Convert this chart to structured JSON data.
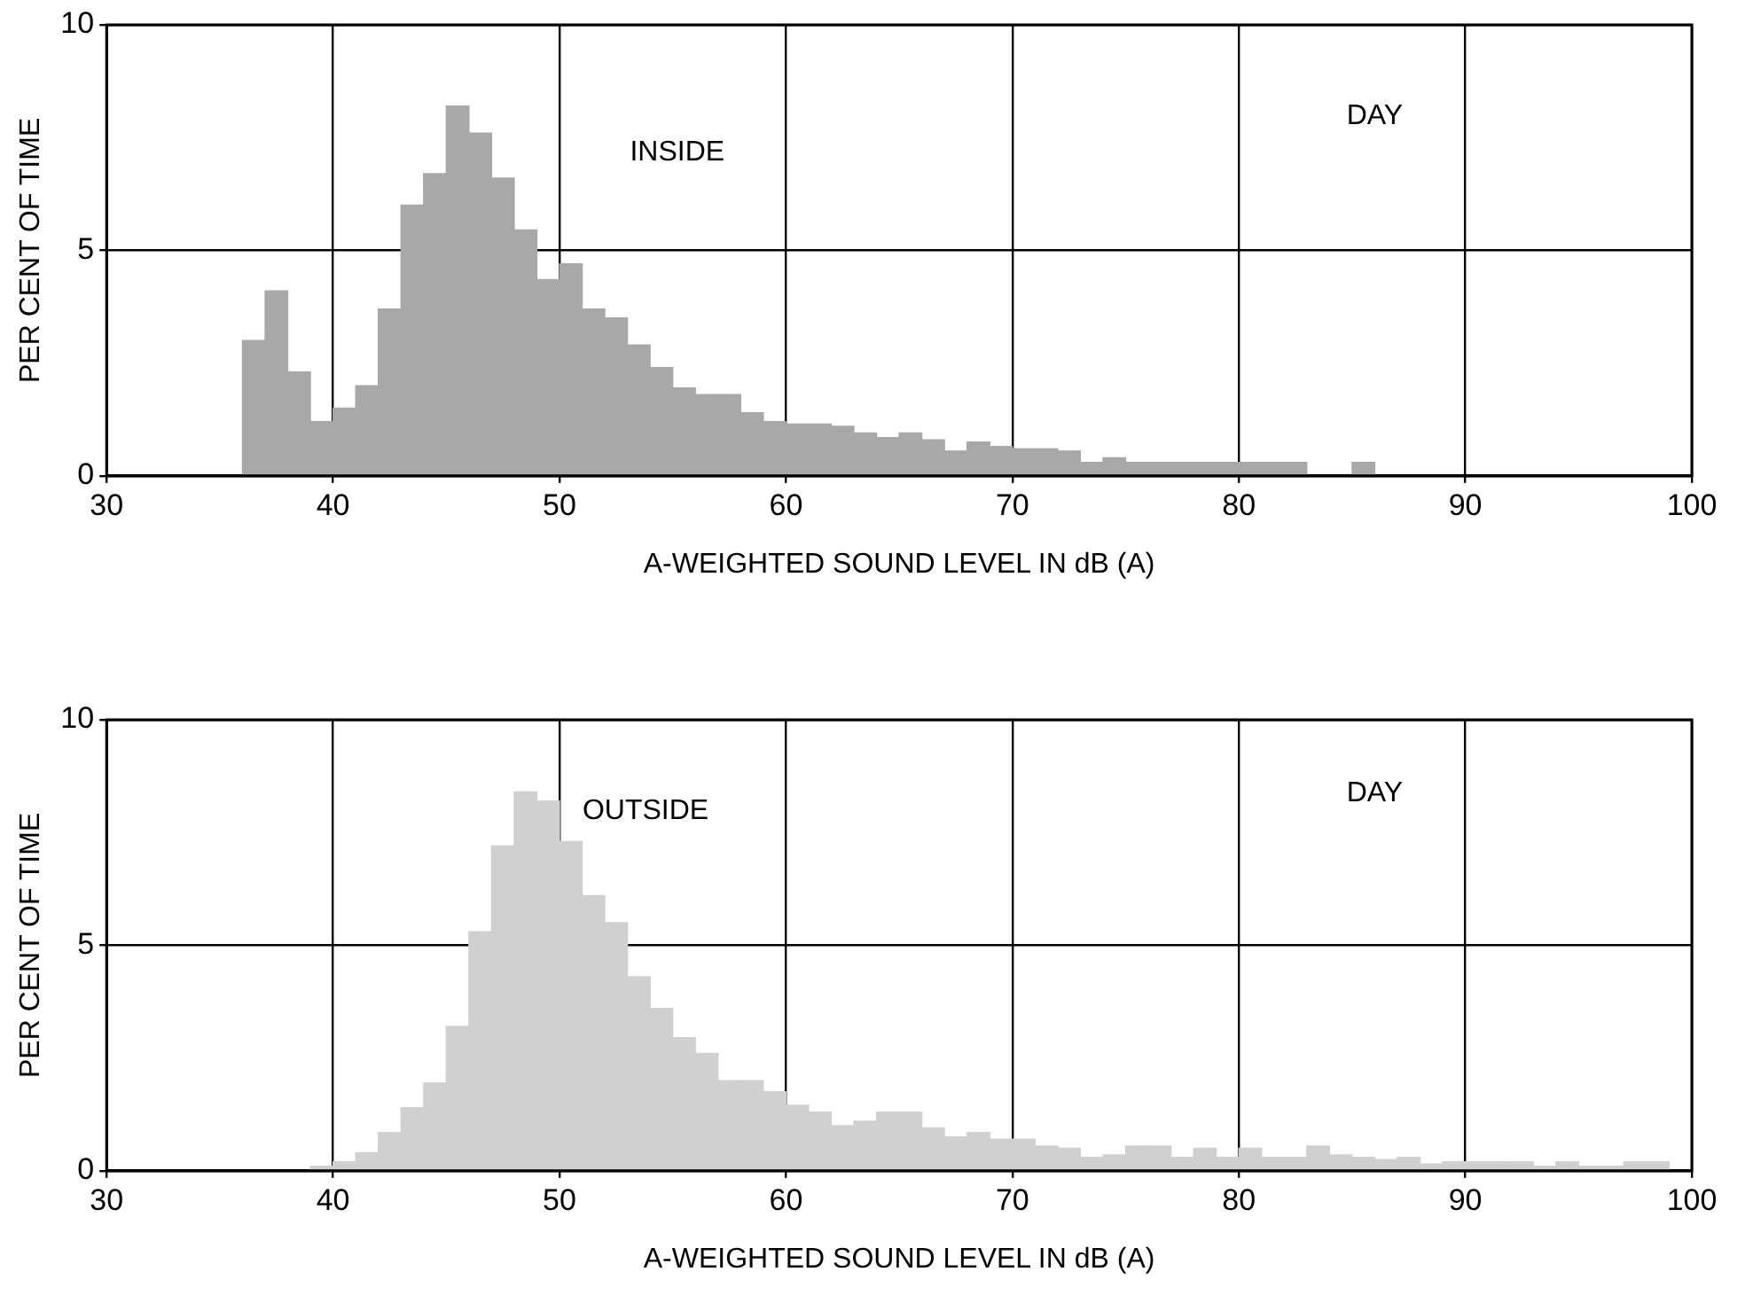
{
  "chart_data": [
    {
      "type": "histogram",
      "ylabel": "PER CENT OF TIME",
      "xlabel": "A-WEIGHTED SOUND LEVEL IN dB (A)",
      "annotations": [
        "INSIDE",
        "DAY"
      ],
      "color": "#a8a8a8",
      "bins": [
        36,
        37,
        38,
        39,
        40,
        41,
        42,
        43,
        44,
        45,
        46,
        47,
        48,
        49,
        50,
        51,
        52,
        53,
        54,
        55,
        56,
        57,
        58,
        59,
        60,
        61,
        62,
        63,
        64,
        65,
        66,
        67,
        68,
        69,
        70,
        71,
        72,
        73,
        74,
        75,
        76,
        77,
        78,
        79,
        80,
        81,
        82,
        83,
        84,
        85,
        86
      ],
      "values": [
        3.0,
        4.1,
        2.3,
        1.2,
        1.5,
        2.0,
        3.7,
        6.0,
        6.7,
        8.2,
        7.6,
        6.6,
        5.45,
        4.35,
        4.7,
        3.7,
        3.5,
        2.9,
        2.4,
        1.95,
        1.8,
        1.8,
        1.4,
        1.2,
        1.15,
        1.15,
        1.1,
        0.95,
        0.85,
        0.95,
        0.8,
        0.55,
        0.75,
        0.65,
        0.6,
        0.6,
        0.55,
        0.3,
        0.4,
        0.3,
        0.3,
        0.3,
        0.3,
        0.3,
        0.3,
        0.3,
        0.3,
        0,
        0,
        0.3
      ],
      "xlim": [
        30,
        100
      ],
      "xticks": [
        30,
        40,
        50,
        60,
        70,
        80,
        90,
        100
      ],
      "ylim": [
        0,
        10
      ],
      "yticks": [
        0,
        5,
        10
      ],
      "grid": true
    },
    {
      "type": "histogram",
      "ylabel": "PER CENT OF TIME",
      "xlabel": "A-WEIGHTED SOUND LEVEL IN dB (A)",
      "annotations": [
        "OUTSIDE",
        "DAY"
      ],
      "color": "#d0d0d0",
      "bins": [
        39,
        40,
        41,
        42,
        43,
        44,
        45,
        46,
        47,
        48,
        49,
        50,
        51,
        52,
        53,
        54,
        55,
        56,
        57,
        58,
        59,
        60,
        61,
        62,
        63,
        64,
        65,
        66,
        67,
        68,
        69,
        70,
        71,
        72,
        73,
        74,
        75,
        76,
        77,
        78,
        79,
        80,
        81,
        82,
        83,
        84,
        85,
        86,
        87,
        88,
        89,
        90,
        91,
        92,
        93,
        94,
        95,
        96,
        97,
        98,
        99
      ],
      "values": [
        0.1,
        0.2,
        0.4,
        0.85,
        1.4,
        1.95,
        3.2,
        5.3,
        7.2,
        8.4,
        8.2,
        7.3,
        6.1,
        5.5,
        4.3,
        3.6,
        2.95,
        2.6,
        2.0,
        2.0,
        1.75,
        1.45,
        1.3,
        1.0,
        1.1,
        1.3,
        1.3,
        0.95,
        0.75,
        0.85,
        0.7,
        0.7,
        0.55,
        0.5,
        0.3,
        0.35,
        0.55,
        0.55,
        0.3,
        0.5,
        0.3,
        0.5,
        0.3,
        0.3,
        0.55,
        0.35,
        0.3,
        0.25,
        0.3,
        0.15,
        0.2,
        0.2,
        0.2,
        0.2,
        0.1,
        0.2,
        0.1,
        0.1,
        0.2,
        0.2
      ],
      "xlim": [
        30,
        100
      ],
      "xticks": [
        30,
        40,
        50,
        60,
        70,
        80,
        90,
        100
      ],
      "ylim": [
        0,
        10
      ],
      "yticks": [
        0,
        5,
        10
      ],
      "grid": true
    }
  ]
}
